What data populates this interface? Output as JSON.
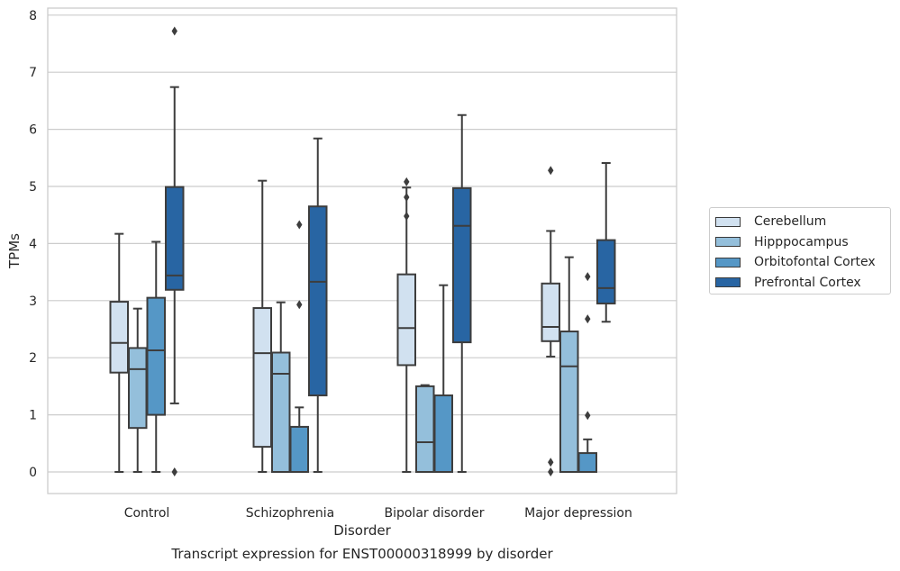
{
  "chart_data": {
    "type": "box",
    "title": "Transcript expression for ENST00000318999 by disorder",
    "xlabel": "Disorder",
    "ylabel": "TPMs",
    "ylim": [
      -0.37,
      8.12
    ],
    "yticks": [
      0,
      1,
      2,
      3,
      4,
      5,
      6,
      7,
      8
    ],
    "grid": true,
    "legend_position": "right",
    "categories": [
      "Control",
      "Schizophrenia",
      "Bipolar disorder",
      "Major depression"
    ],
    "series": [
      {
        "name": "Cerebellum",
        "color": "#d1e1f0",
        "boxes": [
          {
            "whisker_low": 0.0,
            "q1": 1.74,
            "median": 2.26,
            "q3": 2.98,
            "whisker_high": 4.17,
            "outliers": []
          },
          {
            "whisker_low": 0.0,
            "q1": 0.44,
            "median": 2.08,
            "q3": 2.87,
            "whisker_high": 5.1,
            "outliers": []
          },
          {
            "whisker_low": 0.0,
            "q1": 1.87,
            "median": 2.52,
            "q3": 3.46,
            "whisker_high": 4.98,
            "outliers": [
              4.48,
              4.81,
              5.08
            ]
          },
          {
            "whisker_low": 2.02,
            "q1": 2.29,
            "median": 2.54,
            "q3": 3.3,
            "whisker_high": 4.22,
            "outliers": [
              0.0,
              0.17,
              5.28
            ]
          }
        ]
      },
      {
        "name": "Hipppocampus",
        "color": "#94bfdb",
        "boxes": [
          {
            "whisker_low": 0.0,
            "q1": 0.77,
            "median": 1.8,
            "q3": 2.17,
            "whisker_high": 2.86,
            "outliers": []
          },
          {
            "whisker_low": 0.0,
            "q1": 0.0,
            "median": 1.72,
            "q3": 2.09,
            "whisker_high": 2.97,
            "outliers": []
          },
          {
            "whisker_low": 0.0,
            "q1": 0.0,
            "median": 0.52,
            "q3": 1.5,
            "whisker_high": 1.52,
            "outliers": []
          },
          {
            "whisker_low": 0.0,
            "q1": 0.0,
            "median": 1.85,
            "q3": 2.46,
            "whisker_high": 3.76,
            "outliers": []
          }
        ]
      },
      {
        "name": "Orbitofontal Cortex",
        "color": "#5597c6",
        "boxes": [
          {
            "whisker_low": 0.0,
            "q1": 1.0,
            "median": 2.13,
            "q3": 3.05,
            "whisker_high": 4.03,
            "outliers": []
          },
          {
            "whisker_low": 0.0,
            "q1": 0.0,
            "median": 0.0,
            "q3": 0.79,
            "whisker_high": 1.13,
            "outliers": [
              2.93,
              4.33
            ]
          },
          {
            "whisker_low": 0.0,
            "q1": 0.0,
            "median": 0.0,
            "q3": 1.34,
            "whisker_high": 3.27,
            "outliers": []
          },
          {
            "whisker_low": 0.0,
            "q1": 0.0,
            "median": 0.0,
            "q3": 0.33,
            "whisker_high": 0.57,
            "outliers": [
              0.99,
              2.68,
              3.42
            ]
          }
        ]
      },
      {
        "name": "Prefrontal Cortex",
        "color": "#2865a3",
        "boxes": [
          {
            "whisker_low": 1.2,
            "q1": 3.19,
            "median": 3.44,
            "q3": 4.99,
            "whisker_high": 6.74,
            "outliers": [
              0.0,
              7.72
            ]
          },
          {
            "whisker_low": 0.0,
            "q1": 1.34,
            "median": 3.33,
            "q3": 4.65,
            "whisker_high": 5.84,
            "outliers": []
          },
          {
            "whisker_low": 0.0,
            "q1": 2.27,
            "median": 4.31,
            "q3": 4.97,
            "whisker_high": 6.25,
            "outliers": []
          },
          {
            "whisker_low": 2.63,
            "q1": 2.95,
            "median": 3.22,
            "q3": 4.06,
            "whisker_high": 5.41,
            "outliers": []
          }
        ]
      }
    ]
  }
}
